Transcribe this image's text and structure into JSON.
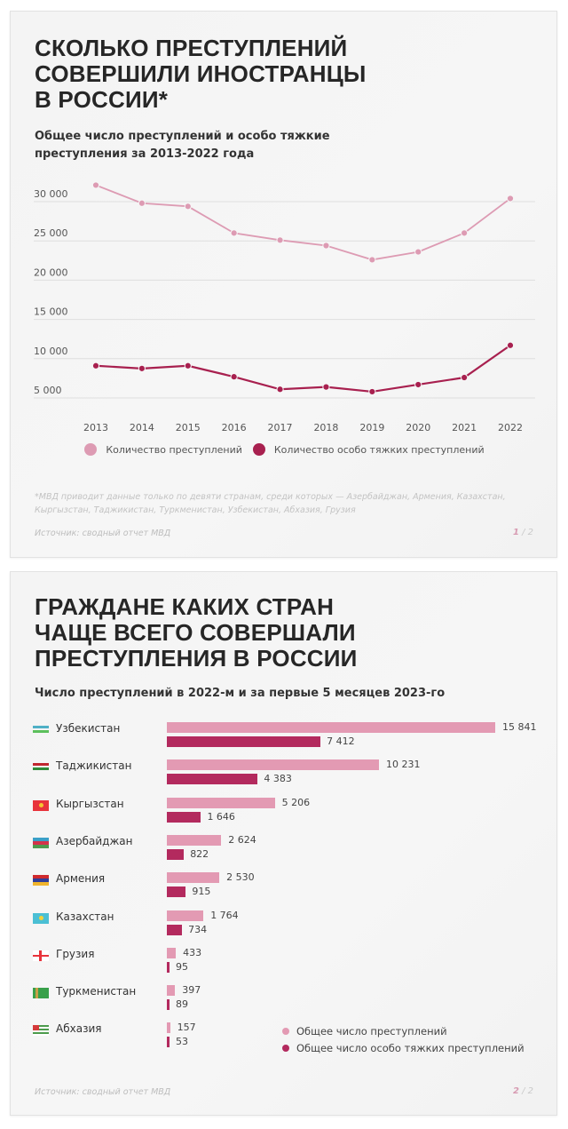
{
  "card1": {
    "title": "СКОЛЬКО ПРЕСТУПЛЕНИЙ\nСОВЕРШИЛИ ИНОСТРАНЦЫ\nВ РОССИИ*",
    "subtitle": "Общее число преступлений и особо тяжкие\nпреступления за 2013-2022 года",
    "legend": [
      {
        "label": "Количество преступлений",
        "color": "#dd9bb3"
      },
      {
        "label": "Количество особо тяжких преступлений",
        "color": "#a8204f"
      }
    ],
    "footnote": "*МВД приводит данные только по девяти странам, среди которых — Азербайджан, Армения, Казахстан, Кыргызстан, Таджикистан, Туркменистан, Узбекистан, Абхазия, Грузия",
    "source": "Источник: сводный отчет МВД",
    "page_current": "1",
    "page_sep_total": " / 2"
  },
  "card2": {
    "title": "ГРАЖДАНЕ КАКИХ СТРАН\nЧАЩЕ ВСЕГО СОВЕРШАЛИ\nПРЕСТУПЛЕНИЯ В РОССИИ",
    "subtitle": "Число преступлений в 2022-м и за первые 5 месяцев 2023-го",
    "legend": [
      {
        "label": "Общее число преступлений",
        "color": "#e39ab3"
      },
      {
        "label": "Общее число особо тяжких преступлений",
        "color": "#b32a5e"
      }
    ],
    "source": "Источник: сводный отчет МВД",
    "page_current": "2",
    "page_sep_total": " / 2"
  },
  "colors": {
    "total": "#dd9bb3",
    "severe": "#a8204f",
    "bar_total": "#e39ab3",
    "bar_severe": "#b32a5e",
    "gridline": "#dedede"
  },
  "chart_data": [
    {
      "type": "line",
      "title": "Общее число преступлений и особо тяжкие преступления за 2013-2022 года",
      "xlabel": "",
      "ylabel": "",
      "x": [
        2013,
        2014,
        2015,
        2016,
        2017,
        2018,
        2019,
        2020,
        2021,
        2022
      ],
      "y_ticks": [
        "5 000",
        "10 000",
        "15 000",
        "20 000",
        "25 000",
        "30 000"
      ],
      "y_tick_values": [
        5000,
        10000,
        15000,
        20000,
        25000,
        30000
      ],
      "ylim": [
        4000,
        33000
      ],
      "grid": true,
      "legend_position": "bottom",
      "series": [
        {
          "name": "Количество преступлений",
          "values": [
            32100,
            29800,
            29400,
            26000,
            25100,
            24400,
            22600,
            23600,
            26000,
            30400
          ]
        },
        {
          "name": "Количество особо тяжких преступлений",
          "values": [
            9100,
            8750,
            9100,
            7700,
            6100,
            6400,
            5800,
            6700,
            7600,
            11700
          ]
        }
      ]
    },
    {
      "type": "bar",
      "orientation": "horizontal",
      "title": "Число преступлений в 2022-м и за первые 5 месяцев 2023-го",
      "xlabel": "",
      "ylabel": "",
      "categories": [
        "Узбекистан",
        "Таджикистан",
        "Кыргызстан",
        "Азербайджан",
        "Армения",
        "Казахстан",
        "Грузия",
        "Туркменистан",
        "Абхазия"
      ],
      "legend_position": "bottom-right",
      "series": [
        {
          "name": "Общее число преступлений",
          "values": [
            15841,
            10231,
            5206,
            2624,
            2530,
            1764,
            433,
            397,
            157
          ]
        },
        {
          "name": "Общее число особо тяжких преступлений",
          "values": [
            7412,
            4383,
            1646,
            822,
            915,
            734,
            95,
            89,
            53
          ]
        }
      ],
      "value_labels": {
        "total": [
          "15 841",
          "10 231",
          "5 206",
          "2 624",
          "2 530",
          "1 764",
          "433",
          "397",
          "157"
        ],
        "severe": [
          "7 412",
          "4 383",
          "1 646",
          "822",
          "915",
          "734",
          "95",
          "89",
          "53"
        ]
      },
      "flags": [
        "uzbekistan-flag",
        "tajikistan-flag",
        "kyrgyzstan-flag",
        "azerbaijan-flag",
        "armenia-flag",
        "kazakhstan-flag",
        "georgia-flag",
        "turkmenistan-flag",
        "abkhazia-flag"
      ]
    }
  ]
}
